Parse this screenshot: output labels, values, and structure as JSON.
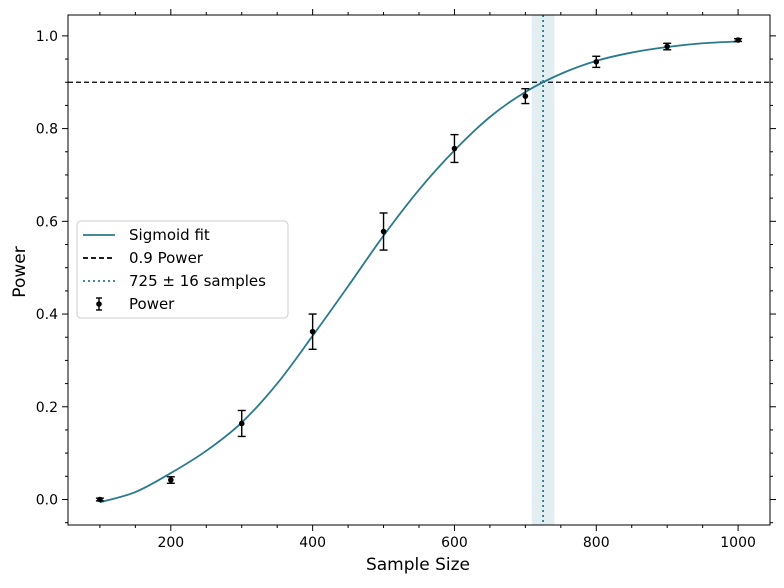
{
  "chart_data": {
    "type": "line",
    "xlabel": "Sample Size",
    "ylabel": "Power",
    "xlim": [
      55,
      1045
    ],
    "ylim": [
      -0.055,
      1.045
    ],
    "x_ticks": [
      200,
      400,
      600,
      800,
      1000
    ],
    "x_tick_labels": [
      "200",
      "400",
      "600",
      "800",
      "1000"
    ],
    "x_minor_step": 50,
    "y_ticks": [
      0.0,
      0.2,
      0.4,
      0.6,
      0.8,
      1.0
    ],
    "y_tick_labels": [
      "0.0",
      "0.2",
      "0.4",
      "0.6",
      "0.8",
      "1.0"
    ],
    "y_minor_step": 0.05,
    "grid": false,
    "legend_position": "center-left",
    "series": [
      {
        "name": "Sigmoid fit",
        "kind": "line",
        "color": "#2b7a8c",
        "x": [
          100,
          150,
          200,
          250,
          300,
          350,
          400,
          450,
          500,
          550,
          600,
          650,
          700,
          750,
          800,
          850,
          900,
          950,
          1000
        ],
        "y": [
          -0.006,
          0.016,
          0.057,
          0.105,
          0.166,
          0.25,
          0.353,
          0.46,
          0.569,
          0.668,
          0.753,
          0.825,
          0.879,
          0.918,
          0.946,
          0.964,
          0.976,
          0.984,
          0.988
        ]
      },
      {
        "name": "Power",
        "kind": "errorbar",
        "color": "#000000",
        "x": [
          100,
          200,
          300,
          400,
          500,
          600,
          700,
          800,
          900,
          1000
        ],
        "y": [
          0.0,
          0.042,
          0.164,
          0.362,
          0.578,
          0.757,
          0.87,
          0.944,
          0.977,
          0.991
        ],
        "err": [
          0.003,
          0.007,
          0.028,
          0.038,
          0.04,
          0.03,
          0.016,
          0.012,
          0.007,
          0.003
        ]
      }
    ],
    "hline": {
      "name": "0.9 Power",
      "y": 0.9,
      "color": "#000000",
      "style": "dashed"
    },
    "vline": {
      "name": "725 ± 16 samples",
      "x": 725,
      "band": [
        709,
        741
      ],
      "color": "#2b7a8c",
      "band_color": "#cfe3e8",
      "style": "dotted"
    },
    "legend": [
      {
        "label": "Sigmoid fit",
        "style": "solid",
        "color": "#2b7a8c"
      },
      {
        "label": "0.9 Power",
        "style": "dashed",
        "color": "#000000"
      },
      {
        "label": "725 ± 16 samples",
        "style": "dotted",
        "color": "#2b7a8c"
      },
      {
        "label": "Power",
        "style": "errorbar",
        "color": "#000000"
      }
    ]
  }
}
